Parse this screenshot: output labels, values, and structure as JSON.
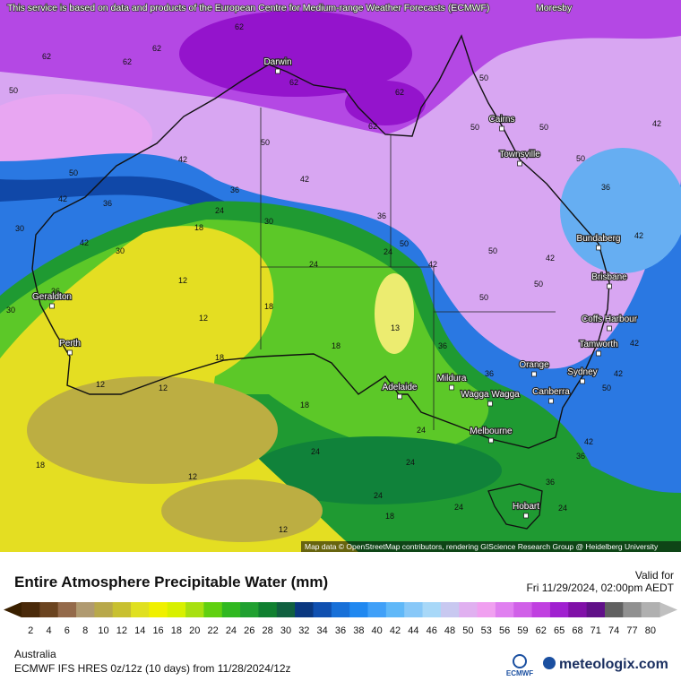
{
  "header": {
    "notice": "This service is based on data and products of the European Centre for Medium-range Weather Forecasts (ECMWF)"
  },
  "map": {
    "edge_label": "Moresby",
    "cities": [
      "Darwin",
      "Cairns",
      "Townsville",
      "Bundaberg",
      "Brisbane",
      "Geraldton",
      "Perth",
      "Coffs Harbour",
      "Tamworth",
      "Orange",
      "Sydney",
      "Canberra",
      "Mildura",
      "Wagga Wagga",
      "Adelaide",
      "Melbourne",
      "Hobart"
    ],
    "contour_labels": [
      62,
      62,
      62,
      62,
      50,
      62,
      62,
      62,
      50,
      50,
      50,
      42,
      50,
      50,
      42,
      42,
      50,
      42,
      36,
      36,
      36,
      36,
      30,
      42,
      30,
      30,
      50,
      24,
      18,
      24,
      42,
      50,
      42,
      42,
      50,
      50,
      24,
      12,
      12,
      18,
      36,
      30,
      13,
      18,
      36,
      42,
      18,
      12,
      12,
      36,
      42,
      50,
      18,
      24,
      24,
      42,
      36,
      36,
      24,
      18,
      12,
      24,
      24,
      24,
      18,
      12
    ],
    "attribution": "Map data © OpenStreetMap contributors, rendering GIScience Research Group @ Heidelberg University"
  },
  "legend": {
    "title": "Entire Atmosphere Precipitable Water (mm)",
    "ticks": [
      2,
      4,
      6,
      8,
      10,
      12,
      14,
      16,
      18,
      20,
      22,
      24,
      26,
      28,
      30,
      32,
      34,
      36,
      38,
      40,
      42,
      44,
      46,
      48,
      50,
      53,
      56,
      59,
      62,
      65,
      68,
      71,
      74,
      77,
      80
    ],
    "colors": [
      "#4a2a0a",
      "#6b4420",
      "#946a4a",
      "#b09a70",
      "#b8a84a",
      "#c8c030",
      "#e0e020",
      "#f0f000",
      "#d8f000",
      "#a8e010",
      "#60d010",
      "#30b820",
      "#20a030",
      "#108030",
      "#106040",
      "#0a3880",
      "#1050b0",
      "#1870d8",
      "#2088f0",
      "#40a0f8",
      "#60b8f8",
      "#88c8f8",
      "#a8d8f8",
      "#c8c8f0",
      "#e0b0f0",
      "#f0a0f0",
      "#e080f0",
      "#d060e8",
      "#c040e0",
      "#a020d0",
      "#8010a8",
      "#601088",
      "#606060",
      "#909090",
      "#b0b0b0"
    ],
    "low_color": "#3a2000",
    "high_color": "#c0c0c0"
  },
  "footer": {
    "valid_label": "Valid for",
    "valid_time": "Fri 11/29/2024, 02:00pm AEDT",
    "region": "Australia",
    "model": "ECMWF IFS HRES 0z/12z (10 days) from 11/28/2024/12z",
    "logo_left": "ECMWF",
    "logo_right": "meteologix.com"
  }
}
